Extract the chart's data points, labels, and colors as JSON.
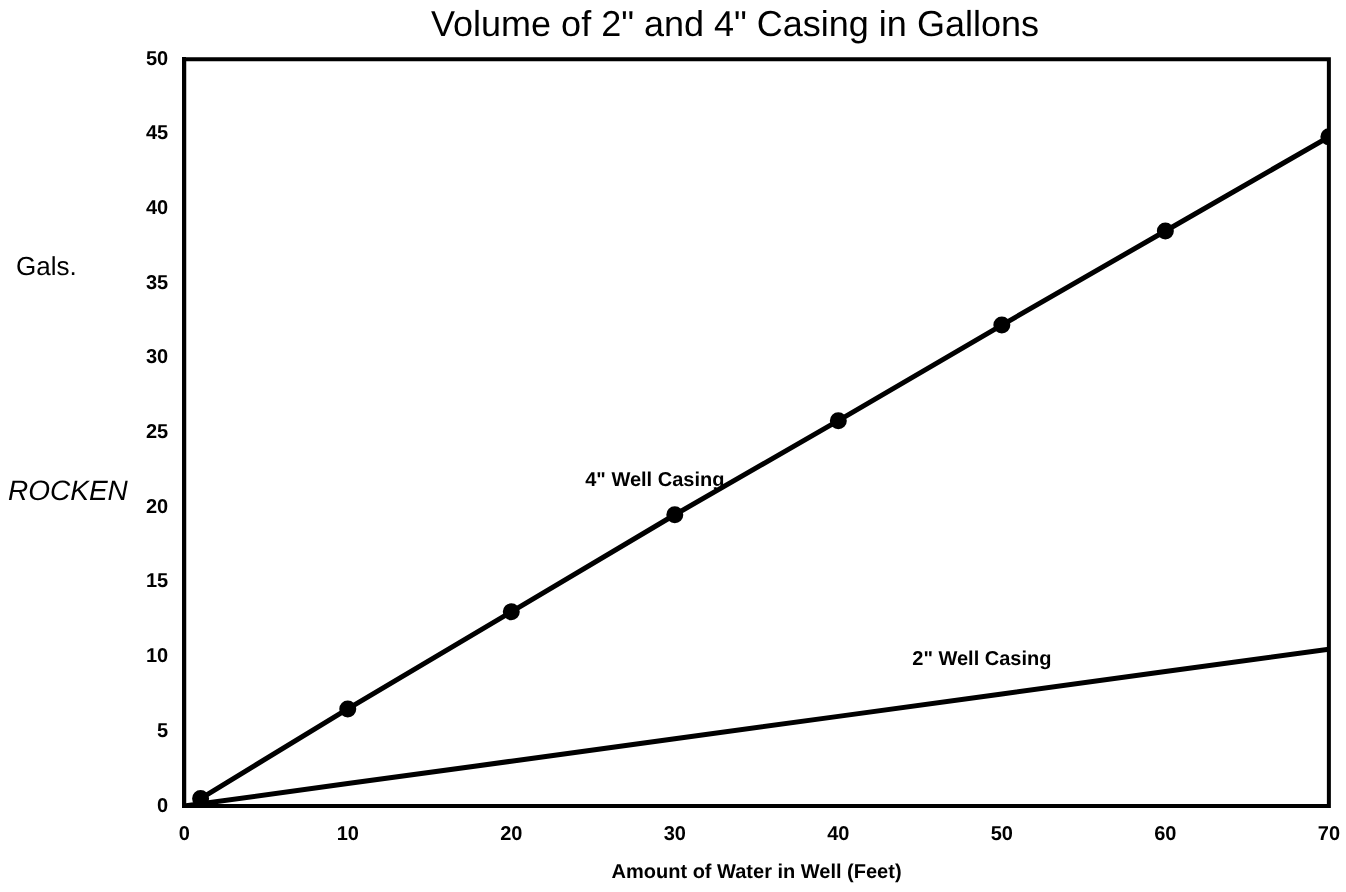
{
  "chart_data": {
    "type": "line",
    "title": "Volume of 2\" and 4\" Casing in Gallons",
    "xlabel": "Amount of Water in Well (Feet)",
    "ylabel": "Gals.",
    "annotations": [
      "ROCKEN"
    ],
    "series": [
      {
        "name": "4\" Well Casing",
        "color": "#000000",
        "marker": "circle",
        "x": [
          1,
          10,
          20,
          30,
          40,
          50,
          60,
          70
        ],
        "values": [
          0.5,
          6.5,
          13,
          19.5,
          25.8,
          32.2,
          38.5,
          44.8
        ]
      },
      {
        "name": "2\" Well Casing",
        "color": "#000000",
        "marker": "none",
        "x": [
          0,
          10,
          20,
          30,
          40,
          50,
          60,
          70
        ],
        "values": [
          0,
          1.5,
          3,
          4.5,
          6,
          7.5,
          9,
          10.5
        ]
      }
    ],
    "xlim": [
      0,
      70
    ],
    "xticks": [
      0,
      10,
      20,
      30,
      40,
      50,
      60,
      70
    ],
    "ylim": [
      0,
      50
    ],
    "yticks": [
      0,
      5,
      10,
      15,
      20,
      25,
      30,
      35,
      40,
      45,
      50
    ],
    "grid": false,
    "legend": false,
    "line_style": "solid"
  }
}
